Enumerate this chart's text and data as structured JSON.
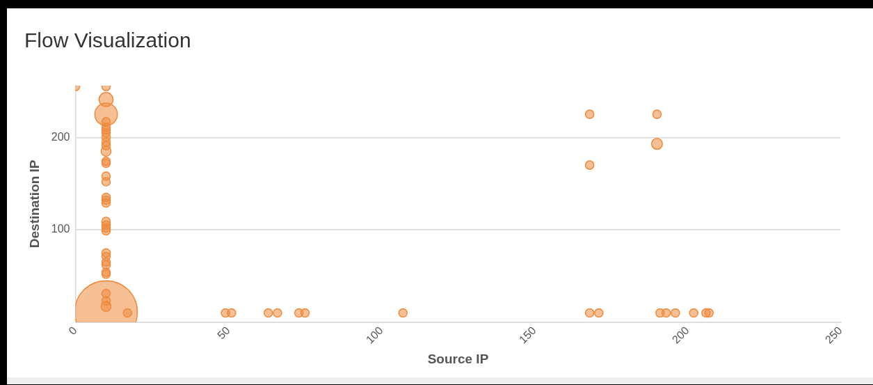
{
  "chart_data": {
    "type": "bubble",
    "title": "Flow Visualization",
    "xlabel": "Source IP",
    "ylabel": "Destination IP",
    "xlim": [
      0,
      250
    ],
    "xticks": [
      0,
      50,
      100,
      150,
      200,
      250
    ],
    "ylim": [
      0,
      256
    ],
    "yticks": [
      {
        "value": 0,
        "label": null
      },
      100,
      200
    ],
    "grid": "y",
    "legend": false,
    "series": [
      {
        "color": "#ef8a3c",
        "x": [
          0,
          10,
          10,
          10,
          10,
          10,
          10,
          10,
          10,
          10,
          10,
          10,
          10,
          10,
          10,
          10,
          10,
          10,
          10,
          10,
          10,
          10,
          10,
          10,
          10,
          10,
          10,
          10,
          10,
          10,
          10,
          10,
          10,
          17,
          49,
          51,
          63,
          66,
          73,
          75,
          107,
          168,
          171,
          191,
          193,
          196,
          202,
          206,
          207,
          168,
          190,
          190,
          168
        ],
        "values": [
          255,
          255,
          241,
          225,
          217,
          211,
          208,
          205,
          200,
          195,
          191,
          185,
          174,
          172,
          158,
          152,
          135,
          132,
          129,
          109,
          105,
          102,
          99,
          75,
          71,
          65,
          62,
          54,
          52,
          31,
          23,
          17,
          11,
          10,
          10,
          10,
          10,
          10,
          10,
          10,
          10,
          10,
          10,
          10,
          10,
          10,
          10,
          10,
          10,
          225,
          225,
          193,
          170
        ],
        "sizes": [
          0.018,
          0.018,
          0.05,
          0.13,
          0.018,
          0.018,
          0.018,
          0.018,
          0.018,
          0.018,
          0.018,
          0.025,
          0.018,
          0.018,
          0.018,
          0.018,
          0.018,
          0.018,
          0.018,
          0.018,
          0.018,
          0.018,
          0.018,
          0.018,
          0.018,
          0.018,
          0.018,
          0.018,
          0.018,
          0.018,
          0.018,
          0.025,
          1,
          0.018,
          0.018,
          0.018,
          0.018,
          0.018,
          0.018,
          0.018,
          0.018,
          0.018,
          0.018,
          0.018,
          0.018,
          0.018,
          0.018,
          0.018,
          0.018,
          0.018,
          0.018,
          0.03,
          0.018
        ]
      }
    ]
  }
}
